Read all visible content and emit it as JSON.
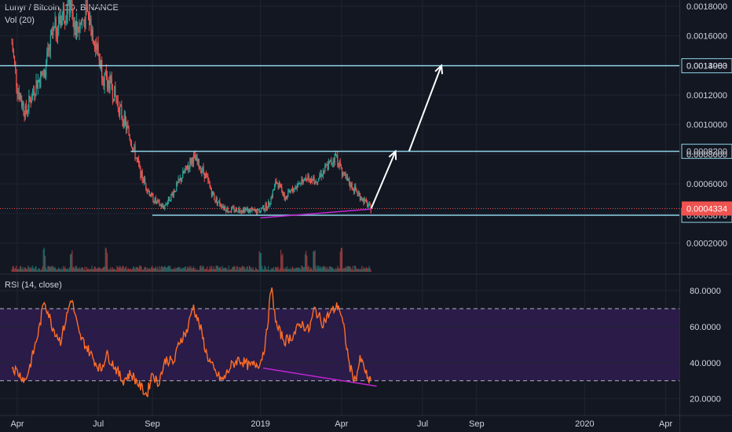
{
  "symbol_title": "Lunyr / Bitcoin, 1D, BINANCE",
  "volume_label": "Vol (20)",
  "rsi_label": "RSI (14, close)",
  "colors": {
    "background": "#131722",
    "grid": "#1f2431",
    "candle_up": "#26a69a",
    "candle_down": "#ef5350",
    "level_line": "#8fd3e6",
    "current_price": "#ef5350",
    "rsi_line": "#ff6d28",
    "rsi_band": "#2a1b48",
    "divergence": "#c026d3",
    "arrow": "#ffffff",
    "axis_text": "#d1d4dc"
  },
  "chart_data": [
    {
      "type": "candlestick",
      "title": "Lunyr / Bitcoin, 1D, BINANCE",
      "price_axis_ticks": [
        "0.0018000",
        "0.0016000",
        "0.0014000",
        "0.0012000",
        "0.0010000",
        "0.0008000",
        "0.0006000",
        "0.0002000"
      ],
      "price_axis_values": [
        0.0018,
        0.0016,
        0.0014,
        0.0012,
        0.001,
        0.0008,
        0.0006,
        0.0002
      ],
      "ylim": [
        0.0,
        0.0019
      ],
      "x_ticks": [
        "Apr",
        "Jul",
        "Sep",
        "2019",
        "Apr",
        "Jul",
        "Sep",
        "2020",
        "Apr"
      ],
      "x_tick_months": [
        0,
        3,
        5,
        9,
        12,
        15,
        17,
        21,
        24
      ],
      "horizontal_levels": [
        {
          "label": "0.0013983",
          "value": 0.0013983,
          "color": "#8fd3e6"
        },
        {
          "label": "0.0008200",
          "value": 0.00082,
          "color": "#8fd3e6"
        },
        {
          "label": "0.0003878",
          "value": 0.0003878,
          "color": "#8fd3e6"
        }
      ],
      "current_price": {
        "label": "0.0004334",
        "value": 0.0004334
      },
      "price_path": [
        {
          "m": -0.2,
          "v": 0.00155
        },
        {
          "m": 0.0,
          "v": 0.00125
        },
        {
          "m": 0.3,
          "v": 0.00108
        },
        {
          "m": 0.7,
          "v": 0.00128
        },
        {
          "m": 1.0,
          "v": 0.00135
        },
        {
          "m": 1.3,
          "v": 0.0016
        },
        {
          "m": 1.6,
          "v": 0.00172
        },
        {
          "m": 1.9,
          "v": 0.00182
        },
        {
          "m": 2.2,
          "v": 0.00165
        },
        {
          "m": 2.6,
          "v": 0.00175
        },
        {
          "m": 2.9,
          "v": 0.00155
        },
        {
          "m": 3.2,
          "v": 0.00132
        },
        {
          "m": 3.5,
          "v": 0.00125
        },
        {
          "m": 3.8,
          "v": 0.0011
        },
        {
          "m": 4.2,
          "v": 0.0009
        },
        {
          "m": 4.6,
          "v": 0.00065
        },
        {
          "m": 5.0,
          "v": 0.0005
        },
        {
          "m": 5.4,
          "v": 0.00044
        },
        {
          "m": 5.7,
          "v": 0.00052
        },
        {
          "m": 6.1,
          "v": 0.00065
        },
        {
          "m": 6.5,
          "v": 0.00078
        },
        {
          "m": 6.9,
          "v": 0.00068
        },
        {
          "m": 7.3,
          "v": 0.0005
        },
        {
          "m": 7.8,
          "v": 0.00042
        },
        {
          "m": 8.3,
          "v": 0.00043
        },
        {
          "m": 8.9,
          "v": 0.00041
        },
        {
          "m": 9.3,
          "v": 0.00046
        },
        {
          "m": 9.6,
          "v": 0.00062
        },
        {
          "m": 9.9,
          "v": 0.0005
        },
        {
          "m": 10.3,
          "v": 0.00058
        },
        {
          "m": 10.7,
          "v": 0.00066
        },
        {
          "m": 11.0,
          "v": 0.00062
        },
        {
          "m": 11.4,
          "v": 0.0007
        },
        {
          "m": 11.8,
          "v": 0.00079
        },
        {
          "m": 12.1,
          "v": 0.00064
        },
        {
          "m": 12.5,
          "v": 0.00056
        },
        {
          "m": 12.9,
          "v": 0.00047
        },
        {
          "m": 13.1,
          "v": 0.00043
        }
      ],
      "volume_spikes_months": [
        1.0,
        2.0,
        3.3,
        9.0,
        9.8,
        10.7,
        11.0,
        12.0
      ],
      "projection_arrows": [
        {
          "from": {
            "m": 13.1,
            "v": 0.000434
          },
          "to": {
            "m": 14.0,
            "v": 0.00082
          }
        },
        {
          "from": {
            "m": 14.5,
            "v": 0.00082
          },
          "to": {
            "m": 15.7,
            "v": 0.0014
          }
        }
      ],
      "divergence_line": {
        "from": {
          "m": 9.0,
          "v": 0.00037
        },
        "to": {
          "m": 13.1,
          "v": 0.00043
        }
      }
    },
    {
      "type": "line",
      "title": "RSI (14, close)",
      "y_ticks": [
        "80.0000",
        "60.0000",
        "40.0000",
        "20.0000"
      ],
      "y_tick_values": [
        80,
        60,
        40,
        20
      ],
      "ylim": [
        17,
        88
      ],
      "bands": [
        70,
        30
      ],
      "rsi_path": [
        {
          "m": -0.2,
          "v": 38
        },
        {
          "m": 0.0,
          "v": 35
        },
        {
          "m": 0.3,
          "v": 30
        },
        {
          "m": 0.5,
          "v": 40
        },
        {
          "m": 0.8,
          "v": 58
        },
        {
          "m": 1.0,
          "v": 75
        },
        {
          "m": 1.3,
          "v": 60
        },
        {
          "m": 1.6,
          "v": 52
        },
        {
          "m": 1.8,
          "v": 64
        },
        {
          "m": 2.0,
          "v": 76
        },
        {
          "m": 2.3,
          "v": 55
        },
        {
          "m": 2.6,
          "v": 48
        },
        {
          "m": 2.9,
          "v": 40
        },
        {
          "m": 3.1,
          "v": 36
        },
        {
          "m": 3.3,
          "v": 45
        },
        {
          "m": 3.6,
          "v": 38
        },
        {
          "m": 3.9,
          "v": 30
        },
        {
          "m": 4.2,
          "v": 34
        },
        {
          "m": 4.5,
          "v": 28
        },
        {
          "m": 4.8,
          "v": 22
        },
        {
          "m": 5.0,
          "v": 35
        },
        {
          "m": 5.2,
          "v": 28
        },
        {
          "m": 5.5,
          "v": 42
        },
        {
          "m": 5.8,
          "v": 40
        },
        {
          "m": 6.0,
          "v": 52
        },
        {
          "m": 6.3,
          "v": 58
        },
        {
          "m": 6.5,
          "v": 72
        },
        {
          "m": 6.8,
          "v": 58
        },
        {
          "m": 7.0,
          "v": 45
        },
        {
          "m": 7.3,
          "v": 35
        },
        {
          "m": 7.6,
          "v": 30
        },
        {
          "m": 7.9,
          "v": 38
        },
        {
          "m": 8.2,
          "v": 42
        },
        {
          "m": 8.6,
          "v": 38
        },
        {
          "m": 9.0,
          "v": 40
        },
        {
          "m": 9.2,
          "v": 52
        },
        {
          "m": 9.4,
          "v": 82
        },
        {
          "m": 9.6,
          "v": 60
        },
        {
          "m": 9.9,
          "v": 52
        },
        {
          "m": 10.2,
          "v": 55
        },
        {
          "m": 10.5,
          "v": 62
        },
        {
          "m": 10.8,
          "v": 58
        },
        {
          "m": 11.0,
          "v": 70
        },
        {
          "m": 11.3,
          "v": 62
        },
        {
          "m": 11.6,
          "v": 68
        },
        {
          "m": 11.9,
          "v": 72
        },
        {
          "m": 12.1,
          "v": 58
        },
        {
          "m": 12.3,
          "v": 38
        },
        {
          "m": 12.5,
          "v": 30
        },
        {
          "m": 12.7,
          "v": 42
        },
        {
          "m": 12.9,
          "v": 35
        },
        {
          "m": 13.0,
          "v": 28
        },
        {
          "m": 13.1,
          "v": 33
        }
      ],
      "divergence_line": {
        "from": {
          "m": 9.1,
          "v": 37
        },
        "to": {
          "m": 13.3,
          "v": 27
        }
      }
    }
  ]
}
